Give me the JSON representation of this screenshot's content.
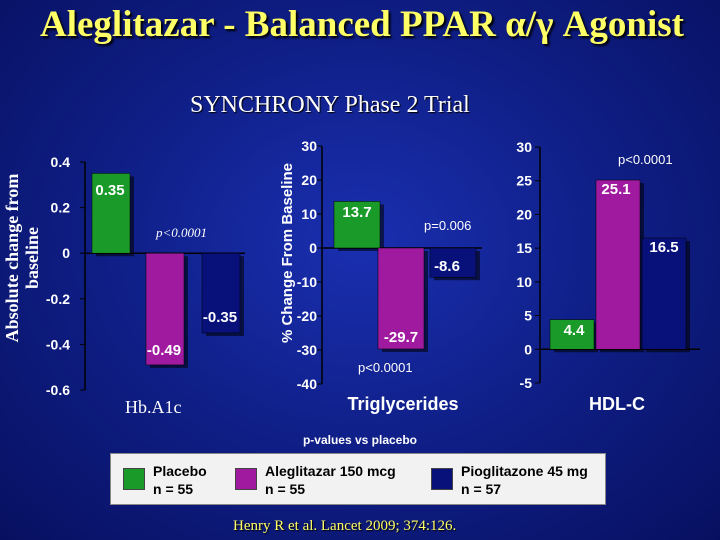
{
  "title": "Aleglitazar - Balanced PPAR α/γ Agonist",
  "subtitle": "SYNCHRONY Phase 2 Trial",
  "colors": {
    "placebo": "#1a9a28",
    "aleglitazar": "#a01aa0",
    "pioglitazone": "#08107a",
    "title": "#ffff66"
  },
  "legend": {
    "note": "p-values vs placebo",
    "items": [
      {
        "name": "Placebo",
        "n": "n = 55"
      },
      {
        "name": "Aleglitazar 150 mcg",
        "n": "n = 55"
      },
      {
        "name": "Pioglitazone 45 mg",
        "n": "n = 57"
      }
    ]
  },
  "citation": "Henry R et al.  Lancet 2009; 374:126.",
  "chart_data": [
    {
      "type": "bar",
      "title": "Hb.A1c",
      "ylabel": "Absolute change from baseline",
      "ylim": [
        -0.6,
        0.4
      ],
      "yticks": [
        "0.4",
        "0.2",
        "0",
        "-0.2",
        "-0.4",
        "-0.6"
      ],
      "categories": [
        "Placebo",
        "Aleglitazar 150 mcg",
        "Pioglitazone 45 mg"
      ],
      "values": [
        0.35,
        -0.49,
        -0.35
      ],
      "labels": [
        "0.35",
        "-0.49",
        "-0.35"
      ],
      "annotations": [
        "p<0.0001"
      ]
    },
    {
      "type": "bar",
      "title": "Triglycerides",
      "ylabel": "% Change From Baseline",
      "ylim": [
        -40,
        30
      ],
      "yticks": [
        "30",
        "20",
        "10",
        "0",
        "-10",
        "-20",
        "-30",
        "-40"
      ],
      "categories": [
        "Placebo",
        "Aleglitazar 150 mcg",
        "Pioglitazone 45 mg"
      ],
      "values": [
        13.7,
        -29.7,
        -8.6
      ],
      "labels": [
        "13.7",
        "-29.7",
        "-8.6"
      ],
      "annotations": [
        "p=0.006",
        "p<0.0001"
      ]
    },
    {
      "type": "bar",
      "title": "HDL-C",
      "ylabel": "",
      "ylim": [
        -5,
        30
      ],
      "yticks": [
        "30",
        "25",
        "20",
        "15",
        "10",
        "5",
        "0",
        "-5"
      ],
      "categories": [
        "Placebo",
        "Aleglitazar 150 mcg",
        "Pioglitazone 45 mg"
      ],
      "values": [
        4.4,
        25.1,
        16.5
      ],
      "labels": [
        "4.4",
        "25.1",
        "16.5"
      ],
      "annotations": [
        "p<0.0001"
      ]
    }
  ]
}
